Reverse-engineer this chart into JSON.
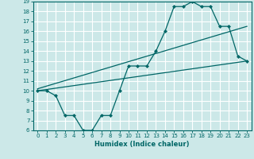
{
  "xlabel": "Humidex (Indice chaleur)",
  "bg_color": "#cce8e8",
  "grid_color": "#ffffff",
  "line_color": "#006666",
  "xlim": [
    -0.5,
    23.5
  ],
  "ylim": [
    6,
    19
  ],
  "xticks": [
    0,
    1,
    2,
    3,
    4,
    5,
    6,
    7,
    8,
    9,
    10,
    11,
    12,
    13,
    14,
    15,
    16,
    17,
    18,
    19,
    20,
    21,
    22,
    23
  ],
  "yticks": [
    6,
    7,
    8,
    9,
    10,
    11,
    12,
    13,
    14,
    15,
    16,
    17,
    18,
    19
  ],
  "curve1_x": [
    0,
    1,
    2,
    3,
    4,
    5,
    6,
    7,
    8,
    9,
    10,
    11,
    12,
    13,
    14,
    15,
    16,
    17,
    18,
    19,
    20,
    21,
    22,
    23
  ],
  "curve1_y": [
    10,
    10,
    9.5,
    7.5,
    7.5,
    6.0,
    6.0,
    7.5,
    7.5,
    10.0,
    12.5,
    12.5,
    12.5,
    14.0,
    16.0,
    18.5,
    18.5,
    19.0,
    18.5,
    18.5,
    16.5,
    16.5,
    13.5,
    13.0
  ],
  "line1_x": [
    0,
    23
  ],
  "line1_y": [
    10.0,
    13.0
  ],
  "line2_x": [
    0,
    23
  ],
  "line2_y": [
    10.2,
    16.5
  ]
}
